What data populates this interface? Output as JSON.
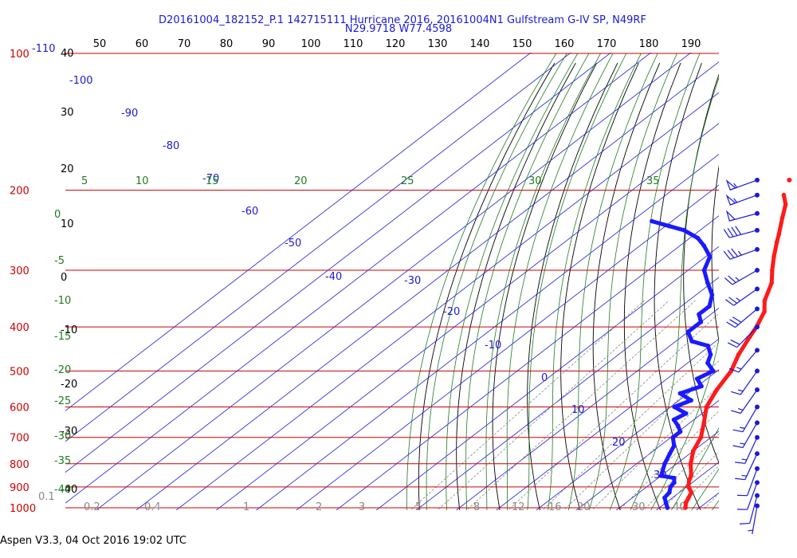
{
  "header": {
    "line1": "D20161004_182152_P.1 142715111 Hurricane 2016, 20161004N1 Gulfstream G-IV SP, N49RF",
    "line2": "N29.9718 W77.4598"
  },
  "footer": {
    "software": "Aspen V3.3, 04 Oct 2016  19:02 UTC"
  },
  "colors": {
    "isobar": "#cc0000",
    "isotherm": "#1a1ad6",
    "dry_adiabat": "#000000",
    "moist_adiabat": "#1f7a1f",
    "mixing_ratio": "#888888",
    "temperature": "#ff1a1a",
    "dewpoint": "#1a1aff",
    "wind": "#1a1ad6"
  },
  "chart_data": {
    "type": "skew-t log-p",
    "pressure_levels_hpa": [
      100,
      200,
      300,
      400,
      500,
      600,
      700,
      800,
      900,
      1000
    ],
    "top_axis_labels": [
      "50",
      "60",
      "70",
      "80",
      "90",
      "100",
      "110",
      "120",
      "130",
      "140",
      "150",
      "160",
      "170",
      "180",
      "190"
    ],
    "left_height_labels": [
      "40",
      "30",
      "20",
      "10",
      "0",
      "-10",
      "-20",
      "-30",
      "-40"
    ],
    "isotherm_labels": [
      "-110",
      "-100",
      "-90",
      "-80",
      "-70",
      "-60",
      "-50",
      "-40",
      "-30",
      "-20",
      "-10",
      "0",
      "10",
      "20",
      "30"
    ],
    "moist_adiabat_labels": [
      "5",
      "10",
      "15",
      "20",
      "25",
      "30",
      "35"
    ],
    "left_green_labels": [
      "0",
      "-5",
      "-10",
      "-15",
      "-20",
      "-25",
      "-30",
      "-35",
      "-40"
    ],
    "mixing_ratio_labels": [
      "0.1",
      "0.2",
      "0.4",
      "1",
      "2",
      "3",
      "5",
      "8",
      "12",
      "16",
      "20",
      "30",
      "40"
    ],
    "temperature_profile": [
      {
        "p": 1000,
        "t": 26.5
      },
      {
        "p": 975,
        "t": 25.0
      },
      {
        "p": 950,
        "t": 24.0
      },
      {
        "p": 925,
        "t": 23.0
      },
      {
        "p": 900,
        "t": 20.5
      },
      {
        "p": 870,
        "t": 18.5
      },
      {
        "p": 850,
        "t": 17.5
      },
      {
        "p": 800,
        "t": 13.5
      },
      {
        "p": 750,
        "t": 10.0
      },
      {
        "p": 700,
        "t": 7.5
      },
      {
        "p": 650,
        "t": 3.5
      },
      {
        "p": 600,
        "t": -1.0
      },
      {
        "p": 550,
        "t": -4.0
      },
      {
        "p": 500,
        "t": -6.5
      },
      {
        "p": 460,
        "t": -10.0
      },
      {
        "p": 420,
        "t": -13.0
      },
      {
        "p": 400,
        "t": -14.5
      },
      {
        "p": 370,
        "t": -17.5
      },
      {
        "p": 350,
        "t": -21.0
      },
      {
        "p": 320,
        "t": -25.0
      },
      {
        "p": 300,
        "t": -29.0
      },
      {
        "p": 280,
        "t": -33.0
      },
      {
        "p": 260,
        "t": -37.0
      },
      {
        "p": 250,
        "t": -39.0
      },
      {
        "p": 230,
        "t": -43.5
      },
      {
        "p": 215,
        "t": -47.0
      },
      {
        "p": 205,
        "t": -50.5
      }
    ],
    "dewpoint_profile": [
      {
        "p": 1000,
        "t": 22.0
      },
      {
        "p": 975,
        "t": 20.0
      },
      {
        "p": 950,
        "t": 18.0
      },
      {
        "p": 925,
        "t": 17.5
      },
      {
        "p": 900,
        "t": 16.0
      },
      {
        "p": 880,
        "t": 15.5
      },
      {
        "p": 860,
        "t": 14.0
      },
      {
        "p": 850,
        "t": 10.0
      },
      {
        "p": 800,
        "t": 7.0
      },
      {
        "p": 760,
        "t": 5.0
      },
      {
        "p": 730,
        "t": 3.5
      },
      {
        "p": 700,
        "t": 0.5
      },
      {
        "p": 680,
        "t": 0.5
      },
      {
        "p": 660,
        "t": -2.0
      },
      {
        "p": 640,
        "t": -5.0
      },
      {
        "p": 620,
        "t": -4.0
      },
      {
        "p": 600,
        "t": -9.0
      },
      {
        "p": 580,
        "t": -7.0
      },
      {
        "p": 560,
        "t": -12.0
      },
      {
        "p": 540,
        "t": -9.0
      },
      {
        "p": 520,
        "t": -12.5
      },
      {
        "p": 500,
        "t": -11.0
      },
      {
        "p": 480,
        "t": -15.0
      },
      {
        "p": 460,
        "t": -17.0
      },
      {
        "p": 440,
        "t": -20.5
      },
      {
        "p": 430,
        "t": -26.0
      },
      {
        "p": 410,
        "t": -30.0
      },
      {
        "p": 390,
        "t": -30.0
      },
      {
        "p": 375,
        "t": -33.0
      },
      {
        "p": 360,
        "t": -33.0
      },
      {
        "p": 340,
        "t": -36.0
      },
      {
        "p": 320,
        "t": -41.0
      },
      {
        "p": 300,
        "t": -46.0
      },
      {
        "p": 280,
        "t": -49.0
      },
      {
        "p": 265,
        "t": -54.0
      },
      {
        "p": 255,
        "t": -58.0
      },
      {
        "p": 245,
        "t": -64.0
      },
      {
        "p": 240,
        "t": -69.0
      },
      {
        "p": 234,
        "t": -75.0
      }
    ],
    "isolated_point": {
      "p": 190,
      "t": -54.0
    },
    "wind_barbs": [
      {
        "p": 190,
        "dir": 250,
        "speed_kt": 55
      },
      {
        "p": 205,
        "dir": 250,
        "speed_kt": 55
      },
      {
        "p": 225,
        "dir": 255,
        "speed_kt": 50
      },
      {
        "p": 245,
        "dir": 255,
        "speed_kt": 40
      },
      {
        "p": 270,
        "dir": 250,
        "speed_kt": 35
      },
      {
        "p": 300,
        "dir": 240,
        "speed_kt": 25
      },
      {
        "p": 330,
        "dir": 235,
        "speed_kt": 25
      },
      {
        "p": 365,
        "dir": 230,
        "speed_kt": 30
      },
      {
        "p": 400,
        "dir": 225,
        "speed_kt": 20
      },
      {
        "p": 450,
        "dir": 220,
        "speed_kt": 15
      },
      {
        "p": 500,
        "dir": 215,
        "speed_kt": 15
      },
      {
        "p": 550,
        "dir": 215,
        "speed_kt": 15
      },
      {
        "p": 600,
        "dir": 210,
        "speed_kt": 15
      },
      {
        "p": 650,
        "dir": 210,
        "speed_kt": 15
      },
      {
        "p": 700,
        "dir": 205,
        "speed_kt": 15
      },
      {
        "p": 760,
        "dir": 205,
        "speed_kt": 15
      },
      {
        "p": 820,
        "dir": 200,
        "speed_kt": 10
      },
      {
        "p": 880,
        "dir": 200,
        "speed_kt": 10
      },
      {
        "p": 940,
        "dir": 195,
        "speed_kt": 10
      },
      {
        "p": 990,
        "dir": 190,
        "speed_kt": 5
      }
    ]
  }
}
